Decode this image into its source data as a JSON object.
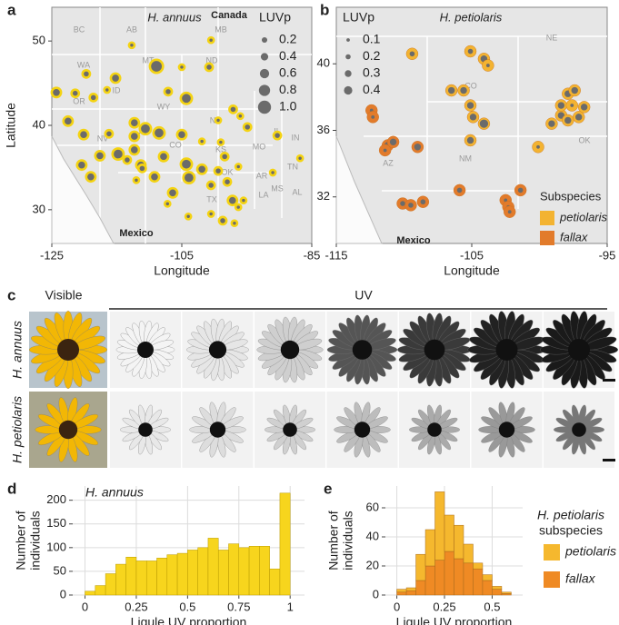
{
  "chart_data": [
    {
      "type": "map_scatter",
      "panel": "a",
      "title": "H. annuus",
      "x_label": "Longitude",
      "y_label": "Latitude",
      "xlim": [
        -125,
        -85
      ],
      "xticks": [
        -125,
        -105,
        -85
      ],
      "ylim": [
        26,
        54
      ],
      "yticks": [
        30,
        40,
        50
      ],
      "color": "#f4d312",
      "fill": "#6b6b6b",
      "x": [
        -112.7,
        -100.5,
        -108.9,
        -105.0,
        -100.8,
        -119.7,
        -115.2,
        -124.3,
        -121.4,
        -118.6,
        -116.5,
        -107.1,
        -104.3,
        -97.1,
        -96.0,
        -94.9,
        -99.4,
        -122.5,
        -120.1,
        -116.2,
        -112.3,
        -110.6,
        -112.3,
        -108.5,
        -105.0,
        -101.9,
        -99.0,
        -98.4,
        -90.3,
        -117.6,
        -114.8,
        -113.4,
        -111.3,
        -107.8,
        -104.3,
        -101.9,
        -99.4,
        -120.4,
        -119.0,
        -112.0,
        -109.2,
        -106.4,
        -103.9,
        -100.5,
        -98.0,
        -96.3,
        -107.2,
        -104.0,
        -100.5,
        -98.7,
        -96.9,
        -96.3,
        -95.5,
        -97.2,
        -91.0,
        -86.8,
        -111.1,
        -112.3
      ],
      "y": [
        49.5,
        50.1,
        47.0,
        46.9,
        46.9,
        46.1,
        45.6,
        43.9,
        43.8,
        43.3,
        44.2,
        44.0,
        43.2,
        41.9,
        41.1,
        39.8,
        40.6,
        40.5,
        38.9,
        39.0,
        40.3,
        39.6,
        38.7,
        39.1,
        38.9,
        38.1,
        38.0,
        36.3,
        38.8,
        36.4,
        36.6,
        35.9,
        35.3,
        36.3,
        35.4,
        34.8,
        34.6,
        35.3,
        33.9,
        33.5,
        33.9,
        32.0,
        33.8,
        32.9,
        33.3,
        35.1,
        30.7,
        29.2,
        29.5,
        28.7,
        28.4,
        30.3,
        31.1,
        31.1,
        34.4,
        36.1,
        34.9,
        37.1
      ],
      "sizes": [
        0.2,
        0.2,
        1.0,
        0.2,
        0.4,
        0.4,
        0.6,
        0.6,
        0.4,
        0.4,
        0.2,
        0.4,
        0.8,
        0.4,
        0.2,
        0.4,
        0.2,
        0.6,
        0.6,
        0.4,
        0.6,
        0.8,
        0.6,
        0.8,
        0.6,
        0.2,
        0.2,
        0.4,
        0.4,
        0.6,
        0.8,
        0.4,
        0.6,
        0.6,
        0.8,
        0.6,
        0.4,
        0.6,
        0.6,
        0.2,
        0.6,
        0.6,
        0.8,
        0.4,
        0.4,
        0.2,
        0.2,
        0.2,
        0.2,
        0.4,
        0.2,
        0.2,
        0.2,
        0.6,
        0.2,
        0.2,
        0.4,
        0.6
      ],
      "size_legend": {
        "title": "LUVp",
        "values": [
          0.2,
          0.4,
          0.6,
          0.8,
          {
            "value": 1,
            "label": "1.0"
          }
        ]
      },
      "map_labels": [
        "BC",
        "AB",
        "MB",
        "WA",
        "MT",
        "ND",
        "OR",
        "ID",
        "WY",
        "NV",
        "UT",
        "CO",
        "NE",
        "KS",
        "MO",
        "IL",
        "IN",
        "OK",
        "AR",
        "TN",
        "TX",
        "LA",
        "MS",
        "AL"
      ],
      "country_labels": [
        "Canada",
        "Mexico"
      ]
    },
    {
      "type": "map_scatter",
      "panel": "b",
      "title": "H. petiolaris",
      "x_label": "Longitude",
      "xlim": [
        -115,
        -95
      ],
      "xticks": [
        -115,
        -105,
        -95
      ],
      "ylim": [
        29.2,
        43.4
      ],
      "yticks": [
        32,
        36,
        40
      ],
      "fill": "#6b6b6b",
      "series": [
        {
          "name": "petiolaris",
          "color": "#f3b331",
          "x": [
            -109.4,
            -105.1,
            -104.1,
            -103.8,
            -106.5,
            -105.6,
            -105.1,
            -104.9,
            -104.1,
            -105.1,
            -100.1,
            -99.1,
            -98.4,
            -97.9,
            -97.1,
            -98.4,
            -97.9,
            -97.4,
            -96.7,
            -97.6
          ],
          "y": [
            40.6,
            40.75,
            40.3,
            39.9,
            38.4,
            38.4,
            37.5,
            36.8,
            36.4,
            35.4,
            35.0,
            36.4,
            36.9,
            36.6,
            36.8,
            37.5,
            38.2,
            38.4,
            37.4,
            37.5
          ],
          "sizes": [
            0.2,
            0.2,
            0.3,
            0.1,
            0.3,
            0.3,
            0.3,
            0.3,
            0.4,
            0.3,
            0.1,
            0.3,
            0.3,
            0.3,
            0.3,
            0.3,
            0.3,
            0.3,
            0.3,
            0.1
          ]
        },
        {
          "name": "fallax",
          "color": "#e27b2b",
          "x": [
            -112.4,
            -112.3,
            -111.2,
            -110.8,
            -111.4,
            -109.0,
            -110.1,
            -109.5,
            -108.6,
            -105.9,
            -102.5,
            -102.3,
            -102.2,
            -101.4
          ],
          "y": [
            37.2,
            36.8,
            35.1,
            35.3,
            34.8,
            35.0,
            31.6,
            31.5,
            31.7,
            32.4,
            31.8,
            31.4,
            31.1,
            32.4
          ],
          "sizes": [
            0.1,
            0.1,
            0.3,
            0.3,
            0.1,
            0.3,
            0.2,
            0.2,
            0.2,
            0.2,
            0.1,
            0.1,
            0.1,
            0.2
          ]
        }
      ],
      "legend_title": "Subspecies",
      "size_legend": {
        "title": "LUVp",
        "values": [
          0.1,
          0.2,
          0.3,
          0.4
        ]
      },
      "map_labels": [
        "NE",
        "CO",
        "AZ",
        "NM",
        "OK"
      ],
      "country_labels": [
        "Mexico"
      ]
    },
    {
      "type": "histogram",
      "panel": "d",
      "title": "H. annuus",
      "x_label": "Ligule UV proportion",
      "y_label": [
        "Number of",
        "individuals"
      ],
      "bins": [
        0,
        0.05,
        0.1,
        0.15,
        0.2,
        0.25,
        0.3,
        0.35,
        0.4,
        0.45,
        0.5,
        0.55,
        0.6,
        0.65,
        0.7,
        0.75,
        0.8,
        0.85,
        0.9,
        0.95,
        1
      ],
      "values": [
        8,
        20,
        45,
        65,
        80,
        72,
        72,
        78,
        85,
        88,
        95,
        100,
        120,
        95,
        108,
        100,
        103,
        103,
        55,
        215
      ],
      "color": "#f7d51d",
      "xlim": [
        -0.06,
        1.07
      ],
      "xticks": [
        0,
        0.25,
        0.5,
        0.75,
        1
      ],
      "ylim": [
        0,
        230
      ],
      "yticks": [
        0,
        50,
        100,
        150,
        200
      ],
      "grid": true
    },
    {
      "type": "stacked_histogram",
      "panel": "e",
      "x_label": "Ligule UV proportion",
      "y_label": [
        "Number of",
        "individuals"
      ],
      "bins": [
        0,
        0.05,
        0.1,
        0.15,
        0.2,
        0.25,
        0.3,
        0.35,
        0.4,
        0.45,
        0.5,
        0.55,
        0.6
      ],
      "series": [
        {
          "name": "fallax",
          "color": "#ef8a24",
          "values": [
            2,
            3,
            10,
            20,
            24,
            30,
            25,
            22,
            18,
            10,
            4,
            1
          ]
        },
        {
          "name": "petiolaris",
          "color": "#f5b82e",
          "values": [
            2,
            2,
            18,
            25,
            47,
            25,
            23,
            13,
            4,
            4,
            2,
            1
          ]
        }
      ],
      "legend_title": [
        "H. petiolaris",
        "subspecies"
      ],
      "xlim": [
        -0.06,
        0.66
      ],
      "xticks": [
        0,
        0.25,
        0.5
      ],
      "ylim": [
        0,
        75
      ],
      "yticks": [
        0,
        20,
        40,
        60
      ],
      "grid": true
    }
  ],
  "photo_panel": {
    "panel": "c",
    "visible_label": "Visible",
    "uv_label": "UV",
    "row_labels": [
      "H. annuus",
      "H. petiolaris"
    ]
  }
}
